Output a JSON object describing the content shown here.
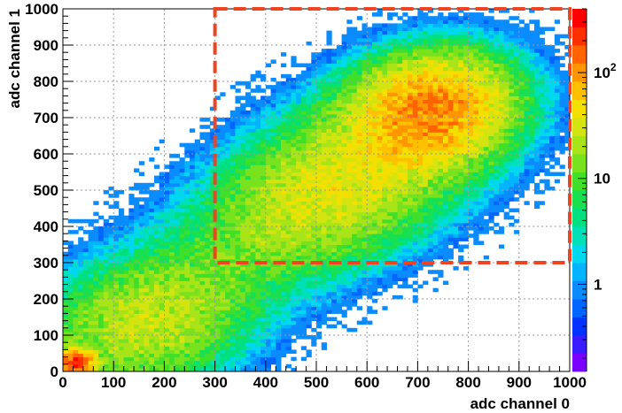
{
  "chart_data": {
    "type": "heatmap",
    "title": "",
    "xlabel": "adc channel 0",
    "ylabel": "adc channel 1",
    "xlim": [
      0,
      1000
    ],
    "ylim": [
      0,
      1000
    ],
    "x_ticks": [
      "0",
      "100",
      "200",
      "300",
      "400",
      "500",
      "600",
      "700",
      "800",
      "900",
      "1000"
    ],
    "y_ticks": [
      "0",
      "100",
      "200",
      "300",
      "400",
      "500",
      "600",
      "700",
      "800",
      "900",
      "1000"
    ],
    "grid": true,
    "z_scale": "log",
    "z_range": [
      0.15,
      400
    ],
    "z_labels": [
      {
        "value": 1,
        "base": "1",
        "exp": ""
      },
      {
        "value": 10,
        "base": "10",
        "exp": ""
      },
      {
        "value": 100,
        "base": "10",
        "exp": "2"
      }
    ],
    "palette": [
      "#7a00ff",
      "#3b1bff",
      "#0033ff",
      "#0066ff",
      "#0a8cff",
      "#00b4ff",
      "#00d8f0",
      "#00e0b8",
      "#00e080",
      "#18e050",
      "#40e02a",
      "#78e21e",
      "#a8e418",
      "#d4e410",
      "#f4e000",
      "#ffc000",
      "#ff9600",
      "#ff6400",
      "#ff3000",
      "#ff0000"
    ],
    "clusters": [
      {
        "cx": 725,
        "cy": 720,
        "sx": 85,
        "sy": 75,
        "rot": 35,
        "peak": 110
      },
      {
        "cx": 550,
        "cy": 520,
        "sx": 170,
        "sy": 95,
        "rot": 42,
        "peak": 40
      },
      {
        "cx": 170,
        "cy": 140,
        "sx": 130,
        "sy": 90,
        "rot": 40,
        "peak": 28
      },
      {
        "cx": 25,
        "cy": 25,
        "sx": 18,
        "sy": 18,
        "rot": 0,
        "peak": 250
      }
    ],
    "selection_box": {
      "x": [
        300,
        1000
      ],
      "y": [
        300,
        1000
      ],
      "color": "#ee4422"
    }
  }
}
